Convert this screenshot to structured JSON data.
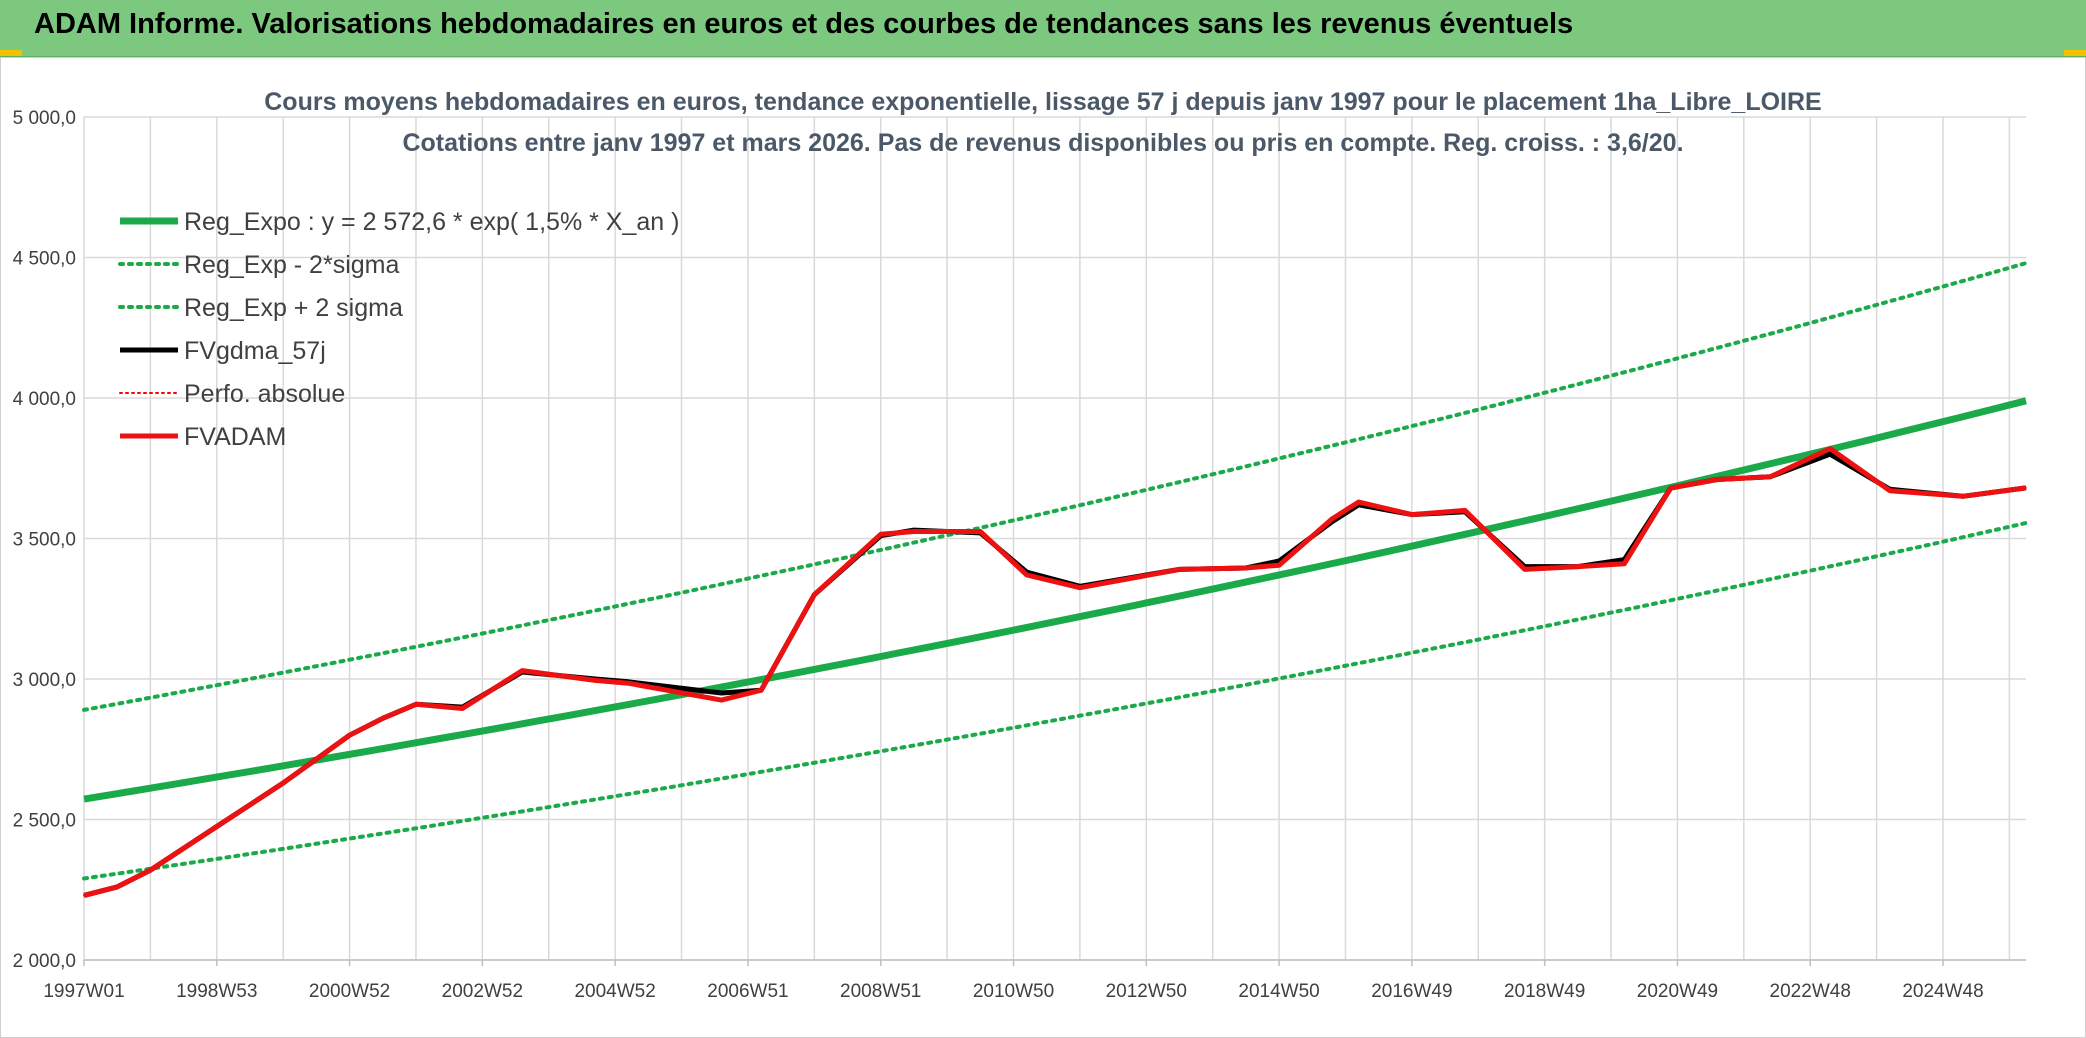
{
  "banner": {
    "title": "ADAM Informe. Valorisations hebdomadaires en euros et des courbes de tendances sans les revenus éventuels"
  },
  "colors": {
    "banner": "#7dc87f",
    "reg_expo": "#1aaa4a",
    "bands": "#1aaa4a",
    "fvgdma": "#000000",
    "perfo": "#ff0000",
    "fvadam": "#ee1111"
  },
  "chart_data": {
    "type": "line",
    "title_line1": "Cours moyens hebdomadaires en euros, tendance exponentielle, lissage 57 j depuis janv 1997 pour le placement 1ha_Libre_LOIRE",
    "title_line2": "Cotations entre janv 1997 et mars 2026. Pas de revenus disponibles ou pris en compte. Reg. croiss. : 3,6/20.",
    "ylim": [
      2000,
      5000
    ],
    "xlim": [
      1997.0,
      2026.25
    ],
    "y_ticks": [
      2000,
      2500,
      3000,
      3500,
      4000,
      4500,
      5000
    ],
    "y_tick_labels": [
      "2 000,0",
      "2 500,0",
      "3 000,0",
      "3 500,0",
      "4 000,0",
      "4 500,0",
      "5 000,0"
    ],
    "x_ticks": [
      1997.0,
      1999.0,
      2001.0,
      2003.0,
      2005.0,
      2007.0,
      2009.0,
      2011.0,
      2013.0,
      2015.0,
      2017.0,
      2019.0,
      2021.0,
      2023.0,
      2025.0
    ],
    "x_tick_labels": [
      "1997W01",
      "1998W53",
      "2000W52",
      "2002W52",
      "2004W52",
      "2006W51",
      "2008W51",
      "2010W50",
      "2012W50",
      "2014W50",
      "2016W49",
      "2018W49",
      "2020W49",
      "2022W48",
      "2024W48"
    ],
    "legend": [
      {
        "label": "Reg_Expo : y = 2 572,6 * exp( 1,5% *  X_an )",
        "style": "solid-thick",
        "color": "#1aaa4a"
      },
      {
        "label": "Reg_Exp - 2*sigma",
        "style": "dotted",
        "color": "#1aaa4a"
      },
      {
        "label": "Reg_Exp + 2 sigma",
        "style": "dotted",
        "color": "#1aaa4a"
      },
      {
        "label": "FVgdma_57j",
        "style": "solid",
        "color": "#000000"
      },
      {
        "label": "Perfo. absolue",
        "style": "dotted",
        "color": "#ff0000"
      },
      {
        "label": "FVADAM",
        "style": "solid-thick",
        "color": "#ee1111"
      }
    ],
    "series": [
      {
        "name": "Reg_Expo",
        "x": [
          1997.0,
          2026.25
        ],
        "values": [
          2572.6,
          3990
        ],
        "curve": "exp"
      },
      {
        "name": "Reg_Exp - 2*sigma",
        "x": [
          1997.0,
          2026.25
        ],
        "values": [
          2290,
          3555
        ],
        "curve": "exp"
      },
      {
        "name": "Reg_Exp + 2 sigma",
        "x": [
          1997.0,
          2026.25
        ],
        "values": [
          2890,
          4480
        ],
        "curve": "exp"
      },
      {
        "name": "FVgdma_57j",
        "x": [
          1997.0,
          1997.5,
          1998.0,
          1999.0,
          2000.0,
          2001.0,
          2001.5,
          2002.0,
          2002.7,
          2003.6,
          2004.7,
          2005.2,
          2006.6,
          2007.2,
          2008.0,
          2009.0,
          2009.5,
          2010.5,
          2011.2,
          2012.0,
          2013.5,
          2014.5,
          2015.0,
          2015.8,
          2016.2,
          2017.0,
          2017.8,
          2018.7,
          2019.5,
          2020.2,
          2020.9,
          2021.6,
          2022.4,
          2023.3,
          2024.2,
          2025.3,
          2026.25
        ],
        "values": [
          2230,
          2260,
          2320,
          2475,
          2630,
          2800,
          2860,
          2910,
          2900,
          3025,
          3000,
          2990,
          2950,
          2960,
          3300,
          3510,
          3530,
          3520,
          3380,
          3330,
          3390,
          3395,
          3420,
          3560,
          3620,
          3585,
          3595,
          3400,
          3400,
          3425,
          3680,
          3710,
          3720,
          3800,
          3675,
          3650,
          3680
        ]
      },
      {
        "name": "Perfo. absolue",
        "x": [
          1997.0,
          1997.5,
          1998.0,
          1999.0,
          2000.0,
          2001.0,
          2001.5,
          2002.0,
          2002.7,
          2003.6,
          2004.7,
          2005.2,
          2006.6,
          2007.2,
          2008.0,
          2009.0,
          2009.5,
          2010.5,
          2011.2,
          2012.0,
          2013.5,
          2014.5,
          2015.0,
          2015.8,
          2016.2,
          2017.0,
          2017.8,
          2018.7,
          2019.5,
          2020.2,
          2020.9,
          2021.6,
          2022.4,
          2023.3,
          2024.2,
          2025.3,
          2026.25
        ],
        "values": [
          2230,
          2260,
          2320,
          2475,
          2630,
          2800,
          2860,
          2910,
          2895,
          3030,
          2995,
          2985,
          2925,
          2960,
          3300,
          3515,
          3525,
          3525,
          3370,
          3325,
          3390,
          3395,
          3405,
          3570,
          3630,
          3585,
          3600,
          3390,
          3400,
          3410,
          3680,
          3710,
          3720,
          3820,
          3670,
          3650,
          3680
        ]
      },
      {
        "name": "FVADAM",
        "x": [
          1997.0,
          1997.5,
          1998.0,
          1999.0,
          2000.0,
          2001.0,
          2001.5,
          2002.0,
          2002.7,
          2003.6,
          2004.7,
          2005.2,
          2006.6,
          2007.2,
          2008.0,
          2009.0,
          2009.5,
          2010.5,
          2011.2,
          2012.0,
          2013.5,
          2014.5,
          2015.0,
          2015.8,
          2016.2,
          2017.0,
          2017.8,
          2018.7,
          2019.5,
          2020.2,
          2020.9,
          2021.6,
          2022.4,
          2023.3,
          2024.2,
          2025.3,
          2026.25
        ],
        "values": [
          2230,
          2260,
          2320,
          2475,
          2630,
          2800,
          2860,
          2910,
          2895,
          3030,
          2995,
          2985,
          2925,
          2960,
          3300,
          3515,
          3525,
          3525,
          3370,
          3325,
          3390,
          3395,
          3405,
          3570,
          3630,
          3585,
          3600,
          3390,
          3400,
          3410,
          3680,
          3710,
          3720,
          3820,
          3670,
          3650,
          3680
        ]
      }
    ]
  }
}
